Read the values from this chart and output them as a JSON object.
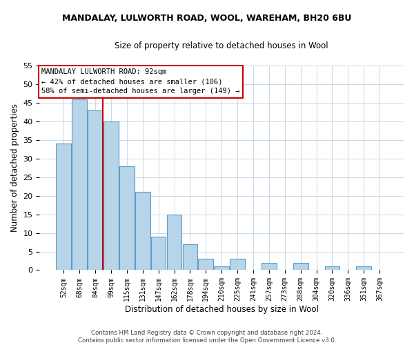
{
  "title": "MANDALAY, LULWORTH ROAD, WOOL, WAREHAM, BH20 6BU",
  "subtitle": "Size of property relative to detached houses in Wool",
  "xlabel": "Distribution of detached houses by size in Wool",
  "ylabel": "Number of detached properties",
  "bar_labels": [
    "52sqm",
    "68sqm",
    "84sqm",
    "99sqm",
    "115sqm",
    "131sqm",
    "147sqm",
    "162sqm",
    "178sqm",
    "194sqm",
    "210sqm",
    "225sqm",
    "241sqm",
    "257sqm",
    "273sqm",
    "288sqm",
    "304sqm",
    "320sqm",
    "336sqm",
    "351sqm",
    "367sqm"
  ],
  "bar_values": [
    34,
    46,
    43,
    40,
    28,
    21,
    9,
    15,
    7,
    3,
    1,
    3,
    0,
    2,
    0,
    2,
    0,
    1,
    0,
    1,
    0
  ],
  "bar_color": "#b8d4e8",
  "bar_edge_color": "#5a9dc8",
  "vline_x": 2.5,
  "vline_color": "#cc0000",
  "ylim": [
    0,
    55
  ],
  "yticks": [
    0,
    5,
    10,
    15,
    20,
    25,
    30,
    35,
    40,
    45,
    50,
    55
  ],
  "annotation_title": "MANDALAY LULWORTH ROAD: 92sqm",
  "annotation_line1": "← 42% of detached houses are smaller (106)",
  "annotation_line2": "58% of semi-detached houses are larger (149) →",
  "annotation_box_color": "#ffffff",
  "annotation_box_edge": "#cc0000",
  "footer_line1": "Contains HM Land Registry data © Crown copyright and database right 2024.",
  "footer_line2": "Contains public sector information licensed under the Open Government Licence v3.0.",
  "bg_color": "#ffffff",
  "grid_color": "#c8d8e8"
}
